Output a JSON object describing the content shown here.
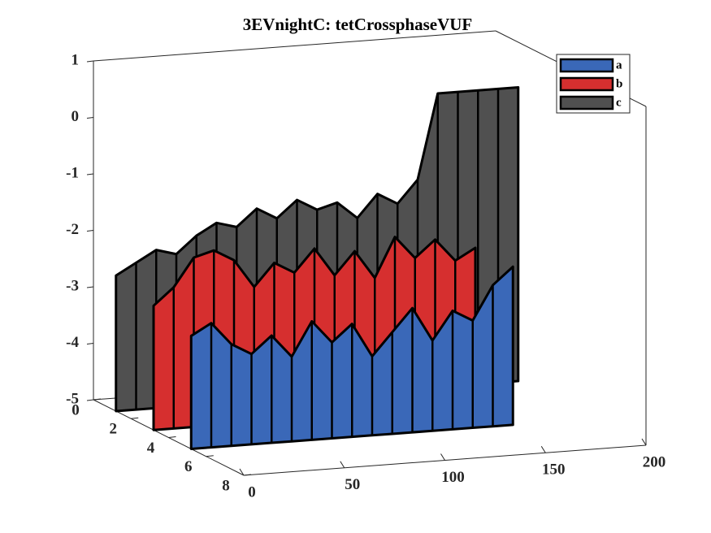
{
  "chart_data": {
    "type": "surface3d",
    "title": "3EVnightC: tetCrossphaseVUF",
    "x": [
      0,
      10,
      20,
      30,
      40,
      50,
      60,
      70,
      80,
      90,
      100,
      110,
      120,
      130,
      140,
      150,
      160,
      170,
      180,
      190,
      200
    ],
    "series": [
      {
        "name": "a",
        "color": "#3a68b8",
        "values": [
          -3.0,
          -2.8,
          -3.2,
          -3.4,
          -3.1,
          -3.5,
          -2.9,
          -3.3,
          -3.0,
          -3.6,
          -3.2,
          -2.8,
          -3.4,
          -2.9,
          -3.1,
          -2.5,
          -2.2,
          null,
          null,
          null,
          null
        ]
      },
      {
        "name": "b",
        "color": "#d62f2f",
        "values": [
          -2.8,
          -2.5,
          -2.0,
          -1.9,
          -2.1,
          -2.6,
          -2.2,
          -2.4,
          -2.0,
          -2.5,
          -2.1,
          -2.6,
          -1.9,
          -2.3,
          -2.0,
          -2.4,
          -2.2,
          null,
          null,
          null,
          null
        ]
      },
      {
        "name": "c",
        "color": "#505050",
        "values": [
          -2.6,
          -2.4,
          -2.2,
          -2.3,
          -2.0,
          -1.8,
          -1.9,
          -1.6,
          -1.8,
          -1.5,
          -1.7,
          -1.6,
          -1.9,
          -1.5,
          -1.7,
          -1.3,
          0.2,
          0.2,
          0.2,
          0.2,
          0.2
        ]
      }
    ],
    "xlim": [
      0,
      200
    ],
    "xticks": [
      0,
      50,
      100,
      150,
      200
    ],
    "ylim": [
      0,
      8
    ],
    "yticks": [
      0,
      2,
      4,
      6,
      8
    ],
    "zlim": [
      -5,
      1
    ],
    "zticks": [
      -5,
      -4,
      -3,
      -2,
      -1,
      0,
      1
    ],
    "legend": "top-right"
  }
}
